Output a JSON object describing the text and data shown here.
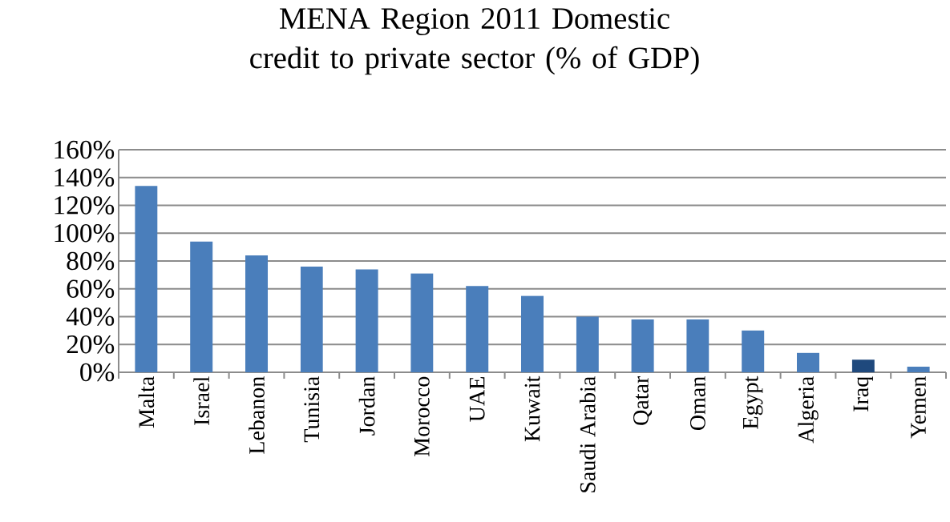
{
  "chart_data": {
    "type": "bar",
    "title": "MENA Region 2011 Domestic credit to private sector (% of GDP)",
    "categories": [
      "Malta",
      "Israel",
      "Lebanon",
      "Tunisia",
      "Jordan",
      "Morocco",
      "UAE",
      "Kuwait",
      "Saudi Arabia",
      "Qatar",
      "Oman",
      "Egypt",
      "Algeria",
      "Iraq",
      "Yemen"
    ],
    "values": [
      134,
      94,
      84,
      76,
      74,
      71,
      62,
      55,
      40,
      38,
      38,
      30,
      14,
      9,
      4
    ],
    "colors": [
      "#4a7ebb",
      "#4a7ebb",
      "#4a7ebb",
      "#4a7ebb",
      "#4a7ebb",
      "#4a7ebb",
      "#4a7ebb",
      "#4a7ebb",
      "#4a7ebb",
      "#4a7ebb",
      "#4a7ebb",
      "#4a7ebb",
      "#4a7ebb",
      "#1f497d",
      "#4a7ebb"
    ],
    "ylim": [
      0,
      160
    ],
    "yticks": [
      {
        "value": 0,
        "label": "0%"
      },
      {
        "value": 20,
        "label": "20%"
      },
      {
        "value": 40,
        "label": "40%"
      },
      {
        "value": 60,
        "label": "60%"
      },
      {
        "value": 80,
        "label": "80%"
      },
      {
        "value": 100,
        "label": "100%"
      },
      {
        "value": 120,
        "label": "120%"
      },
      {
        "value": 140,
        "label": "140%"
      },
      {
        "value": 160,
        "label": "160%"
      }
    ],
    "grid": "y"
  }
}
